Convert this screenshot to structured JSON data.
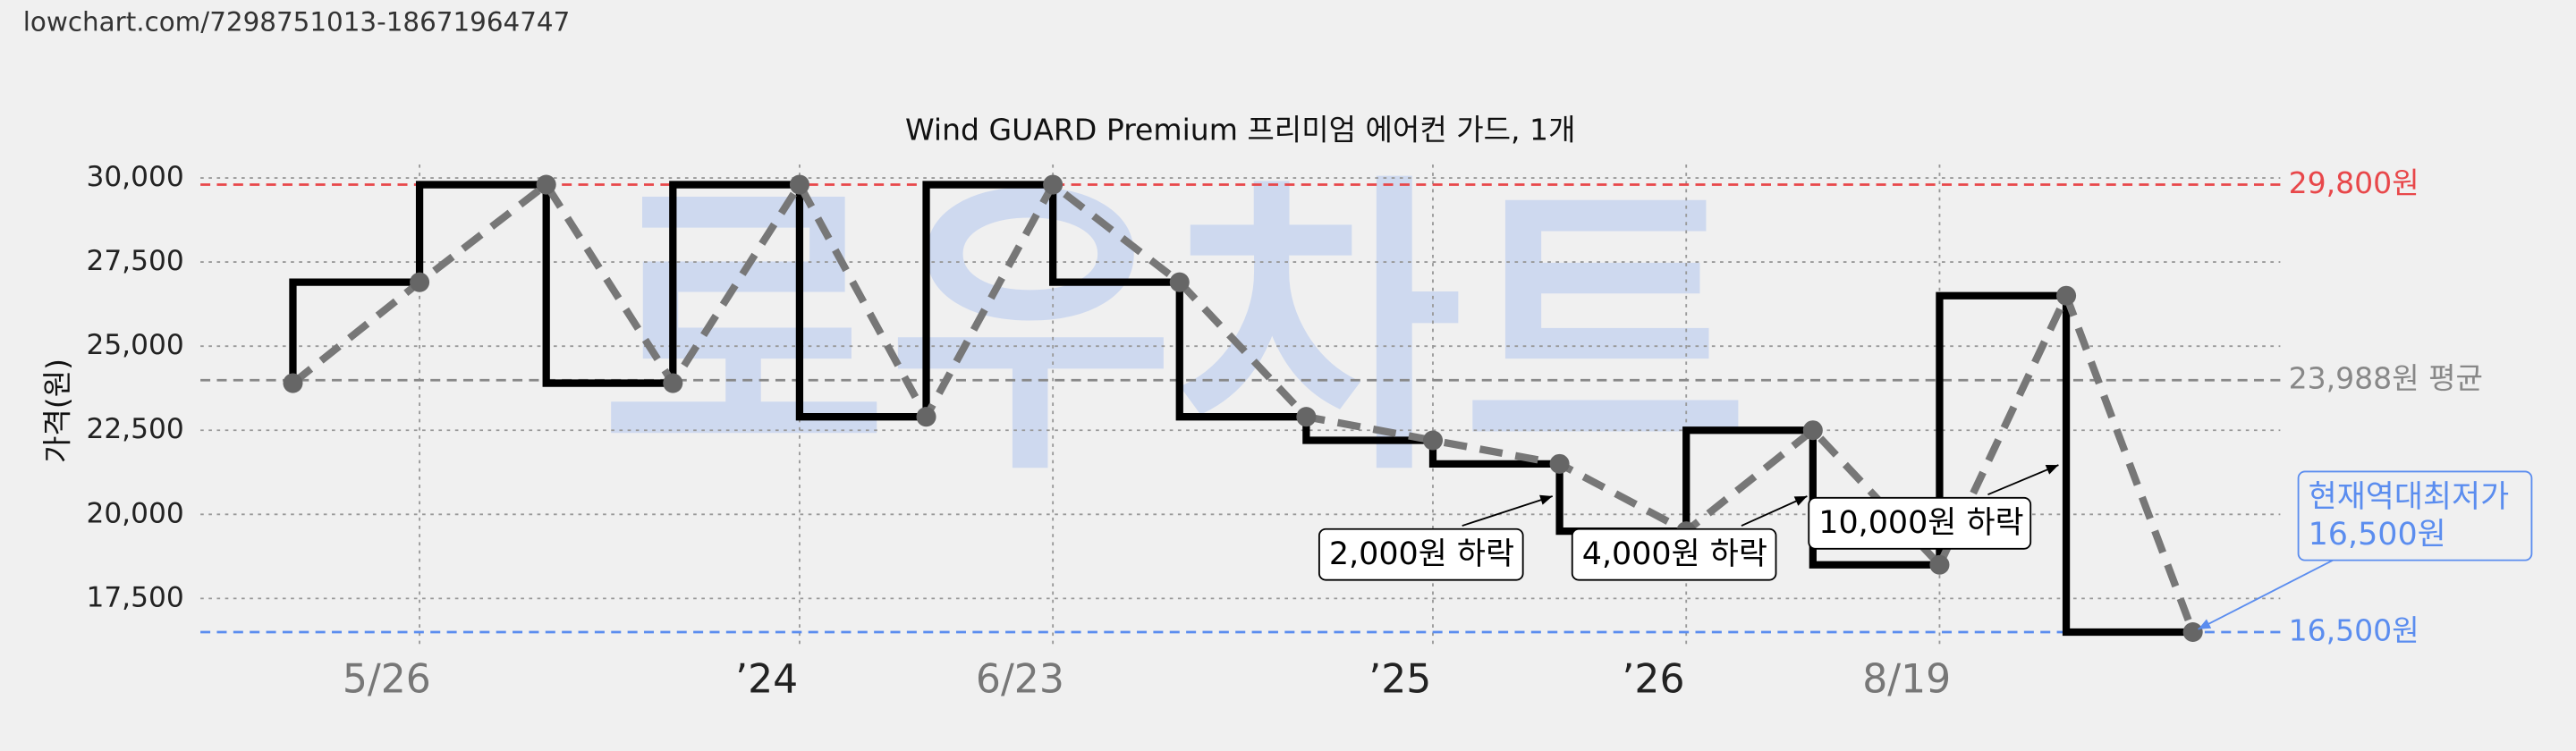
{
  "url": "lowchart.com/7298751013-18671964747",
  "chart_data": {
    "type": "line",
    "title": "Wind GUARD Premium 프리미엄 에어컨 가드, 1개",
    "y_label": "가격(원)",
    "watermark": "로우차트",
    "x": [
      0,
      1,
      2,
      3,
      4,
      5,
      6,
      7,
      8,
      9,
      10,
      11,
      12,
      13,
      14,
      15
    ],
    "series": [
      {
        "name": "가격",
        "color": "#777777",
        "values": [
          23900,
          26900,
          29800,
          23900,
          29800,
          22900,
          29800,
          26900,
          22900,
          22200,
          21500,
          19500,
          22500,
          18500,
          26500,
          16500
        ]
      }
    ],
    "step_color": "#000000",
    "xlim": [
      -0.73,
      15.69
    ],
    "xticks": [
      {
        "value": 1,
        "label": "5/26"
      },
      {
        "value": 4,
        "label": "’24"
      },
      {
        "value": 6,
        "label": "6/23"
      },
      {
        "value": 9,
        "label": "’25"
      },
      {
        "value": 11,
        "label": "’26"
      },
      {
        "value": 13,
        "label": "8/19"
      }
    ],
    "ylim": [
      16000,
      30400
    ],
    "yticks": [
      {
        "value": 17500,
        "label": "17,500"
      },
      {
        "value": 20000,
        "label": "20,000"
      },
      {
        "value": 22500,
        "label": "22,500"
      },
      {
        "value": 25000,
        "label": "25,000"
      },
      {
        "value": 27500,
        "label": "27,500"
      },
      {
        "value": 30000,
        "label": "30,000"
      }
    ],
    "grid": true,
    "reference_lines": [
      {
        "value": 29800,
        "label": "29,800원",
        "color": "#e8474a"
      },
      {
        "value": 23988,
        "label": "23,988원 평균",
        "color": "#888888"
      },
      {
        "value": 16500,
        "label": "16,500원",
        "color": "#5b8def"
      }
    ],
    "annotations": [
      {
        "text": "2,000원 하락"
      },
      {
        "text": "4,000원 하락"
      },
      {
        "text": "10,000원 하락"
      },
      {
        "text": [
          "현재역대최저가",
          "16,500원"
        ],
        "color": "#5b8def"
      }
    ]
  }
}
